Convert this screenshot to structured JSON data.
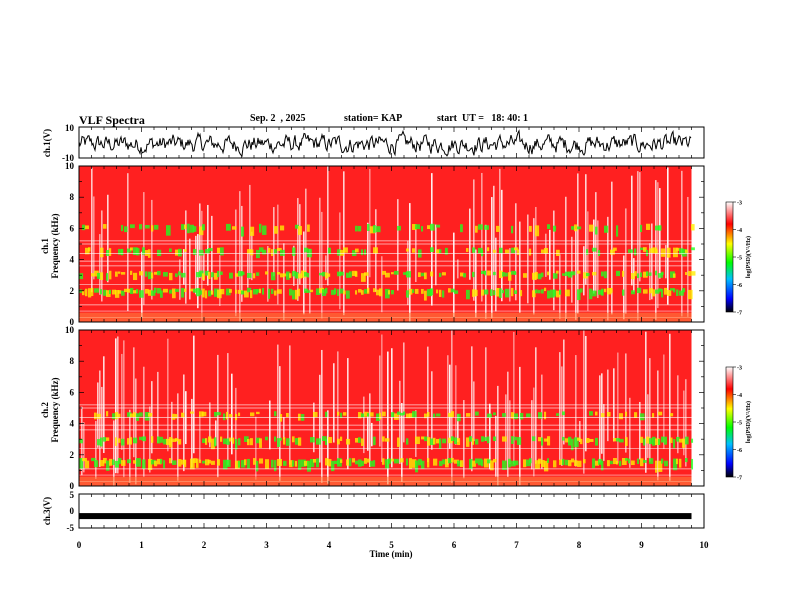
{
  "header": {
    "title": "VLF Spectra",
    "date": "Sep. 2  , 2025",
    "station": "station= KAP",
    "start": "start  UT =   18: 40: 1"
  },
  "chart_data": [
    {
      "type": "line",
      "panel": "ch1-waveform",
      "ylabel": "ch.1(V)",
      "ylim": [
        -10,
        10
      ],
      "yticks": [
        "10",
        "-10"
      ],
      "xlim": [
        0,
        10
      ],
      "description_level": "trace fluctuating roughly between -8 and 6 V over 0-9.8 min"
    },
    {
      "type": "heatmap",
      "panel": "ch1-spectrogram",
      "ylabel": "ch.1\nFrequency  (kHz)",
      "ylim": [
        0,
        10
      ],
      "yticks": [
        "0",
        "2",
        "4",
        "6",
        "8",
        "10"
      ],
      "xlim": [
        0,
        10
      ],
      "data_end_min": 9.8,
      "colorbar": {
        "label": "log(PSD)(V²/Hz)",
        "range": [
          -7,
          -3
        ],
        "ticks": [
          "-7",
          "-6",
          "-5",
          "-4",
          "-3"
        ]
      }
    },
    {
      "type": "heatmap",
      "panel": "ch2-spectrogram",
      "ylabel": "ch.2\nFrequency  (kHz)",
      "ylim": [
        0,
        10
      ],
      "yticks": [
        "0",
        "2",
        "4",
        "6",
        "8",
        "10"
      ],
      "xlim": [
        0,
        10
      ],
      "data_end_min": 9.8,
      "colorbar": {
        "label": "log(PSD)(V²/Hz)",
        "range": [
          -7,
          -3
        ],
        "ticks": [
          "-7",
          "-6",
          "-5",
          "-4",
          "-3"
        ]
      }
    },
    {
      "type": "line",
      "panel": "ch3-waveform",
      "ylabel": "ch.3(V)",
      "ylim": [
        -5,
        5
      ],
      "yticks": [
        "5",
        "0",
        "-5"
      ],
      "xlim": [
        0,
        10
      ],
      "level": -1.5
    }
  ],
  "xaxis": {
    "label": "Time  (min)",
    "ticks": [
      "0",
      "1",
      "2",
      "3",
      "4",
      "5",
      "6",
      "7",
      "8",
      "9",
      "10"
    ]
  },
  "colors": {
    "high": "#ff2020",
    "mid": "#ffee00",
    "low": "#20ff20",
    "trace": "#000000"
  }
}
